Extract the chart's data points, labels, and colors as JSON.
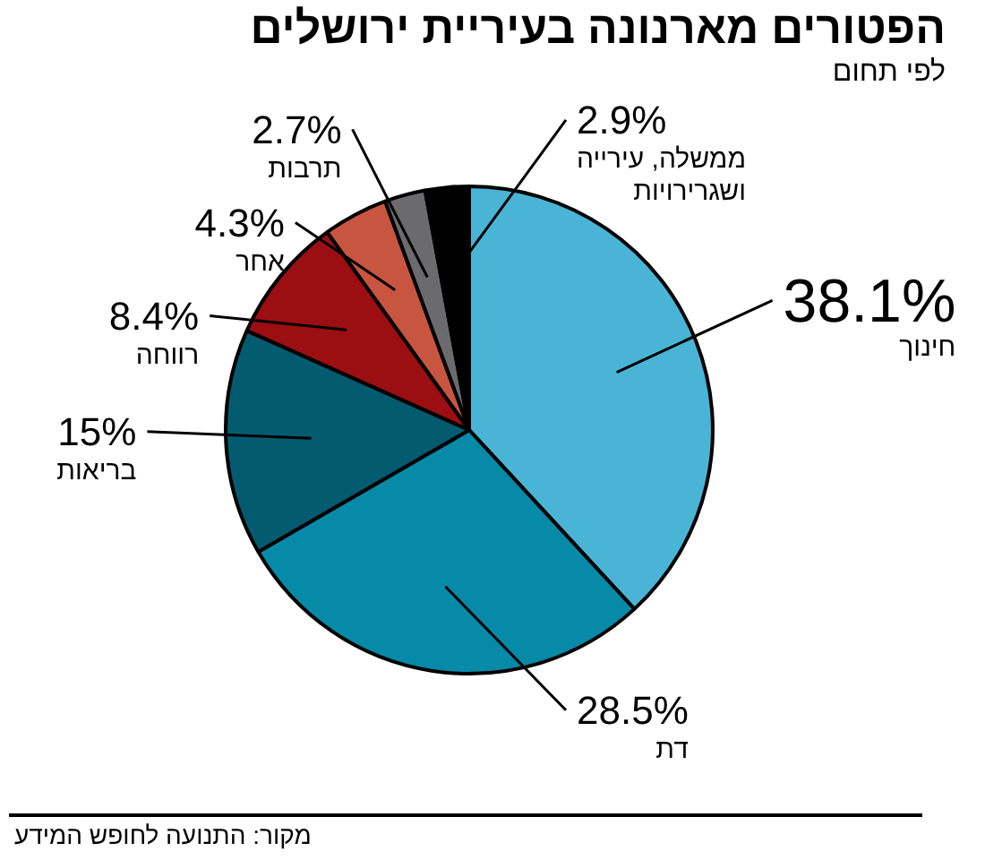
{
  "chart_data": {
    "type": "pie",
    "title": "הפטורים מארנונה בעיריית ירושלים",
    "subtitle": "לפי תחום",
    "categories": [
      "חינוך",
      "דת",
      "בריאות",
      "רווחה",
      "אחר",
      "תרבות",
      "ממשלה, עירייה ושגרירויות"
    ],
    "values": [
      38.1,
      28.5,
      15,
      8.4,
      4.3,
      2.7,
      2.9
    ],
    "value_labels": [
      "38.1%",
      "28.5%",
      "15%",
      "8.4%",
      "4.3%",
      "2.7%",
      "2.9%"
    ],
    "colors": [
      "#4ab4d6",
      "#0789a8",
      "#035b70",
      "#9b0e12",
      "#c85540",
      "#6b6b6d",
      "#000000"
    ],
    "legend": false,
    "annotations": [
      "מקור: התנועה לחופש המידע"
    ]
  }
}
